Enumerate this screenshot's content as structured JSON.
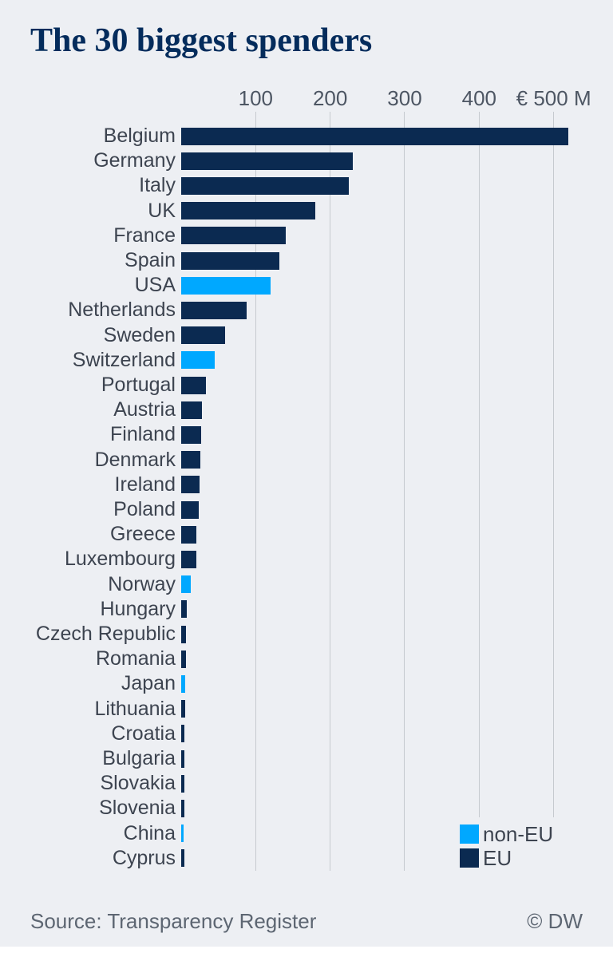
{
  "title": "The 30 biggest spenders",
  "footer": {
    "source": "Source: Transparency Register",
    "credit": "© DW"
  },
  "legend": {
    "items": [
      {
        "label": "non-EU",
        "key": "non_eu"
      },
      {
        "label": "EU",
        "key": "eu"
      }
    ]
  },
  "colors": {
    "eu": "#0b2a51",
    "non_eu": "#00a8ff",
    "background": "#edeff3",
    "title_text": "#042c5c",
    "label_text": "#3d4450",
    "axis_text": "#4d5663",
    "footer_text": "#5d6672",
    "gridline": "#c6cacf"
  },
  "chart_data": {
    "type": "bar",
    "orientation": "horizontal",
    "title": "The 30 biggest spenders",
    "unit_label": "€ M",
    "xlabel": "",
    "ylabel": "",
    "x_axis": {
      "ticks": [
        100,
        200,
        300,
        400,
        500
      ],
      "tick_labels": [
        "100",
        "200",
        "300",
        "400",
        "€ 500 M"
      ],
      "range": [
        0,
        580
      ],
      "grid": true
    },
    "legend_position": "bottom-right",
    "categories": [
      "Belgium",
      "Germany",
      "Italy",
      "UK",
      "France",
      "Spain",
      "USA",
      "Netherlands",
      "Sweden",
      "Switzerland",
      "Portugal",
      "Austria",
      "Finland",
      "Denmark",
      "Ireland",
      "Poland",
      "Greece",
      "Luxembourg",
      "Norway",
      "Hungary",
      "Czech Republic",
      "Romania",
      "Japan",
      "Lithuania",
      "Croatia",
      "Bulgaria",
      "Slovakia",
      "Slovenia",
      "China",
      "Cyprus"
    ],
    "values": [
      520,
      230,
      225,
      180,
      140,
      132,
      120,
      88,
      59,
      45,
      33,
      28,
      27,
      26,
      25,
      24,
      20,
      20,
      13,
      7,
      6,
      6,
      5,
      5,
      4.5,
      4,
      4,
      4,
      3,
      4
    ],
    "groups": [
      "EU",
      "EU",
      "EU",
      "EU",
      "EU",
      "EU",
      "non-EU",
      "EU",
      "EU",
      "non-EU",
      "EU",
      "EU",
      "EU",
      "EU",
      "EU",
      "EU",
      "EU",
      "EU",
      "non-EU",
      "EU",
      "EU",
      "EU",
      "non-EU",
      "EU",
      "EU",
      "EU",
      "EU",
      "EU",
      "non-EU",
      "EU"
    ]
  }
}
